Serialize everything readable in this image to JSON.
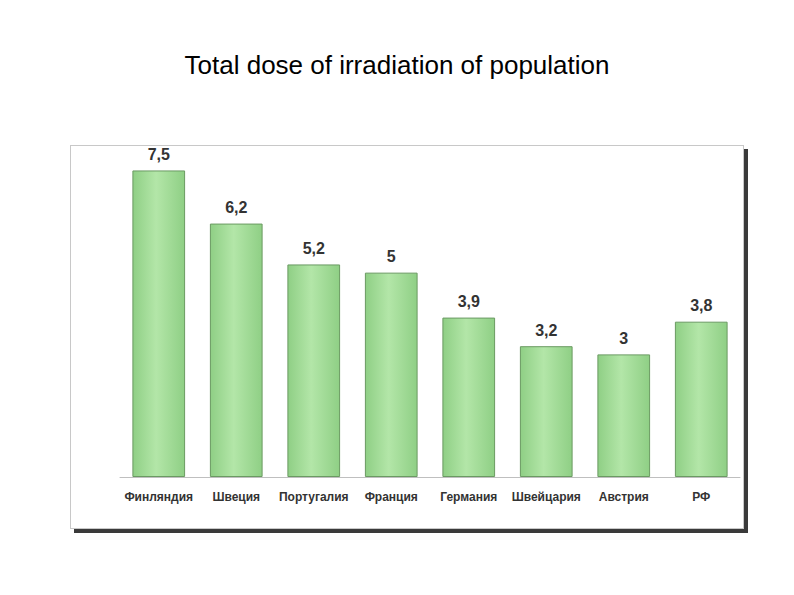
{
  "chart_data": {
    "type": "bar",
    "title": "Total dose of irradiation of population",
    "categories": [
      "Финляндия",
      "Швеция",
      "Португалия",
      "Франция",
      "Германия",
      "Швейцария",
      "Австрия",
      "РФ"
    ],
    "values": [
      7.5,
      6.2,
      5.2,
      5,
      3.9,
      3.2,
      3,
      3.8
    ],
    "value_labels": [
      "7,5",
      "6,2",
      "5,2",
      "5",
      "3,9",
      "3,2",
      "3",
      "3,8"
    ],
    "color": "#b3e6a8",
    "data_labels": true,
    "tick_labels": "x",
    "grid": false
  }
}
